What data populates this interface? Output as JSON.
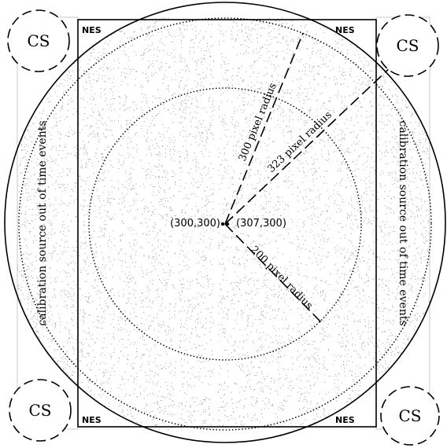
{
  "corner_label": "NES",
  "cs_label": "CS",
  "side_label": "calibration source out of time events",
  "center_left_label": "(300,300)",
  "center_right_label": "(307,300)",
  "radius_labels": {
    "r300": "300 pixel radius",
    "r323": "323 pixel radius",
    "r200": "200 pixel radius"
  },
  "colors": {
    "ink": "#000000",
    "noise": "#9a9a9a",
    "background": "#ffffff"
  }
}
